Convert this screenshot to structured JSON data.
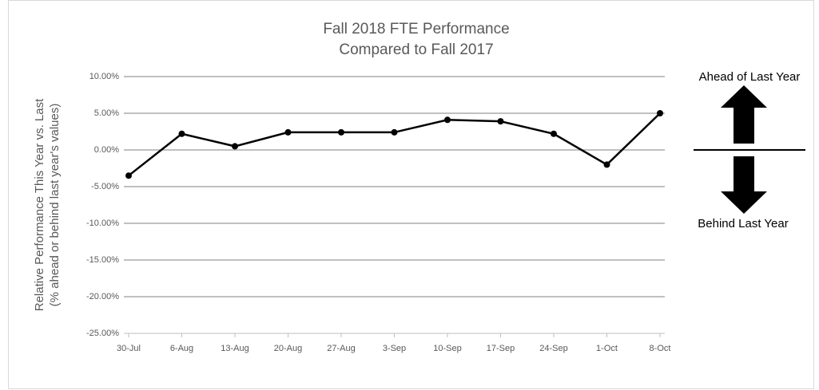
{
  "chart_data": {
    "type": "line",
    "title_lines": [
      "Fall 2018 FTE Performance",
      "Compared to Fall 2017"
    ],
    "y_label_lines": [
      "Relative Performance This Year vs. Last",
      "(% ahead or behind last year's values)"
    ],
    "categories": [
      "30-Jul",
      "6-Aug",
      "13-Aug",
      "20-Aug",
      "27-Aug",
      "3-Sep",
      "10-Sep",
      "17-Sep",
      "24-Sep",
      "1-Oct",
      "8-Oct"
    ],
    "series": [
      {
        "color": "#000000",
        "values": [
          -3.5,
          2.2,
          0.5,
          2.4,
          2.4,
          2.4,
          4.1,
          3.9,
          2.2,
          -2.0,
          5.0
        ]
      }
    ],
    "ylim": [
      -25,
      10
    ],
    "yticks": [
      {
        "value": -25,
        "label": "-25.00%"
      },
      {
        "value": -20,
        "label": "-20.00%"
      },
      {
        "value": -15,
        "label": "-15.00%"
      },
      {
        "value": -10,
        "label": "-10.00%"
      },
      {
        "value": -5,
        "label": "-5.00%"
      },
      {
        "value": 0,
        "label": "0.00%"
      },
      {
        "value": 5,
        "label": "5.00%"
      },
      {
        "value": 10,
        "label": "10.00%"
      }
    ],
    "grid": true,
    "annotations": [
      "Ahead of Last Year",
      "Behind Last Year"
    ]
  }
}
